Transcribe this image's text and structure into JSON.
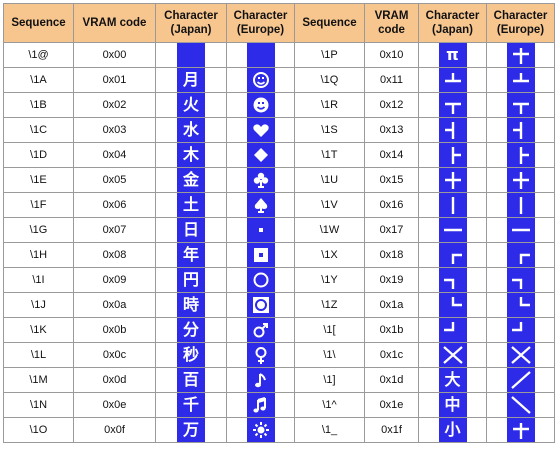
{
  "headers": {
    "sequence": "Sequence",
    "vram": "VRAM code",
    "char_japan": "Character\n(Japan)",
    "char_europe": "Character\n(Europe)"
  },
  "left_rows": [
    {
      "seq": "\\1@",
      "code": "0x00",
      "japan": "",
      "europe": ""
    },
    {
      "seq": "\\1A",
      "code": "0x01",
      "japan": "月",
      "europe": "smiley-outline"
    },
    {
      "seq": "\\1B",
      "code": "0x02",
      "japan": "火",
      "europe": "smiley-filled"
    },
    {
      "seq": "\\1C",
      "code": "0x03",
      "japan": "水",
      "europe": "heart"
    },
    {
      "seq": "\\1D",
      "code": "0x04",
      "japan": "木",
      "europe": "diamond"
    },
    {
      "seq": "\\1E",
      "code": "0x05",
      "japan": "金",
      "europe": "club"
    },
    {
      "seq": "\\1F",
      "code": "0x06",
      "japan": "土",
      "europe": "spade"
    },
    {
      "seq": "\\1G",
      "code": "0x07",
      "japan": "日",
      "europe": "bullet"
    },
    {
      "seq": "\\1H",
      "code": "0x08",
      "japan": "年",
      "europe": "inverse-bullet"
    },
    {
      "seq": "\\1I",
      "code": "0x09",
      "japan": "円",
      "europe": "circle"
    },
    {
      "seq": "\\1J",
      "code": "0x0a",
      "japan": "時",
      "europe": "inverse-circle"
    },
    {
      "seq": "\\1K",
      "code": "0x0b",
      "japan": "分",
      "europe": "male"
    },
    {
      "seq": "\\1L",
      "code": "0x0c",
      "japan": "秒",
      "europe": "female"
    },
    {
      "seq": "\\1M",
      "code": "0x0d",
      "japan": "百",
      "europe": "note"
    },
    {
      "seq": "\\1N",
      "code": "0x0e",
      "japan": "千",
      "europe": "double-note"
    },
    {
      "seq": "\\1O",
      "code": "0x0f",
      "japan": "万",
      "europe": "sun"
    }
  ],
  "right_rows": [
    {
      "seq": "\\1P",
      "code": "0x10",
      "japan": "π",
      "europe": "box-dagger"
    },
    {
      "seq": "\\1Q",
      "code": "0x11",
      "japan": "box-up-tee",
      "europe": "box-up-tee"
    },
    {
      "seq": "\\1R",
      "code": "0x12",
      "japan": "box-down-tee",
      "europe": "box-down-tee"
    },
    {
      "seq": "\\1S",
      "code": "0x13",
      "japan": "box-left-tee",
      "europe": "box-left-tee"
    },
    {
      "seq": "\\1T",
      "code": "0x14",
      "japan": "box-right-tee",
      "europe": "box-right-tee"
    },
    {
      "seq": "\\1U",
      "code": "0x15",
      "japan": "box-cross",
      "europe": "box-cross"
    },
    {
      "seq": "\\1V",
      "code": "0x16",
      "japan": "box-vertical",
      "europe": "box-vertical"
    },
    {
      "seq": "\\1W",
      "code": "0x17",
      "japan": "box-horizontal",
      "europe": "box-horizontal"
    },
    {
      "seq": "\\1X",
      "code": "0x18",
      "japan": "box-top-left",
      "europe": "box-top-left"
    },
    {
      "seq": "\\1Y",
      "code": "0x19",
      "japan": "box-top-right",
      "europe": "box-top-right"
    },
    {
      "seq": "\\1Z",
      "code": "0x1a",
      "japan": "box-bottom-left",
      "europe": "box-bottom-left"
    },
    {
      "seq": "\\1[",
      "code": "0x1b",
      "japan": "box-bottom-right",
      "europe": "box-bottom-right"
    },
    {
      "seq": "\\1\\",
      "code": "0x1c",
      "japan": "cross-x",
      "europe": "cross-x"
    },
    {
      "seq": "\\1]",
      "code": "0x1d",
      "japan": "大",
      "europe": "slash"
    },
    {
      "seq": "\\1^",
      "code": "0x1e",
      "japan": "中",
      "europe": "backslash"
    },
    {
      "seq": "\\1_",
      "code": "0x1f",
      "japan": "小",
      "europe": "box-dagger"
    }
  ],
  "colors": {
    "header_bg": "#f7c68f",
    "glyph_bg": "#2d2be8",
    "glyph_fg": "#ffffff",
    "border": "#9a9a9a"
  }
}
